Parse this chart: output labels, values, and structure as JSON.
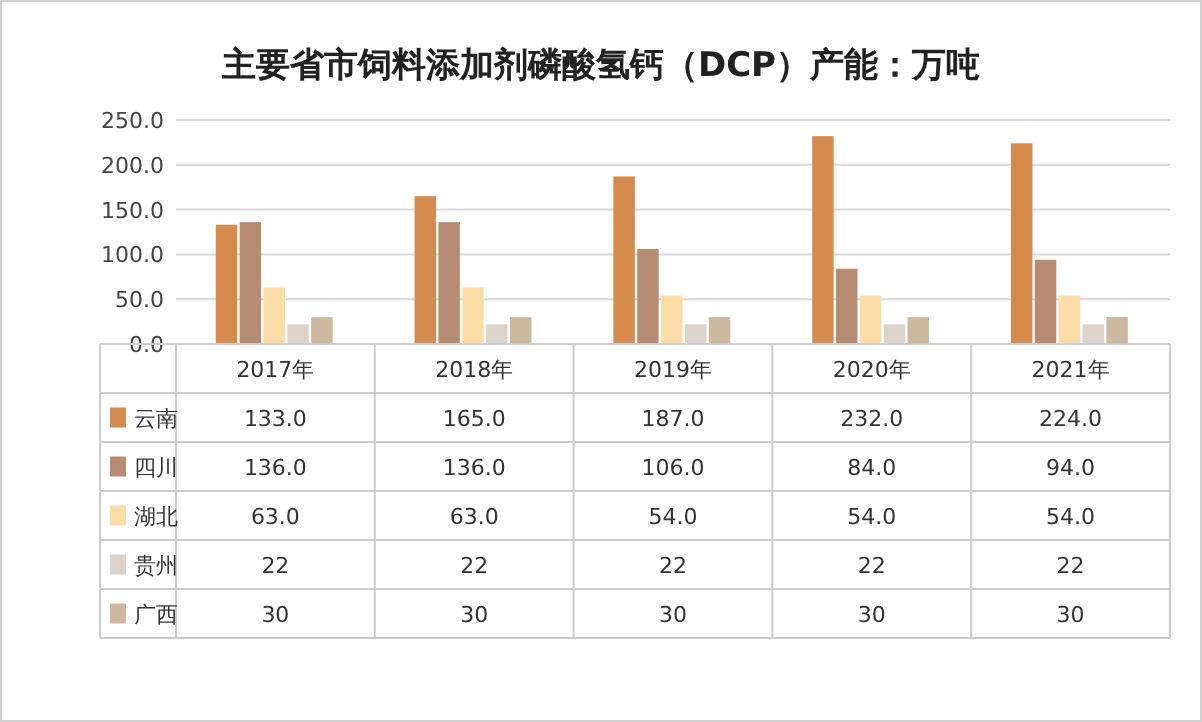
{
  "chart_data": {
    "type": "bar",
    "title": "主要省市饲料添加剂磷酸氢钙（DCP）产能：万吨",
    "categories": [
      "2017年",
      "2018年",
      "2019年",
      "2020年",
      "2021年"
    ],
    "series": [
      {
        "name": "云南",
        "color": "#d58a4e",
        "values": [
          133.0,
          165.0,
          187.0,
          232.0,
          224.0
        ],
        "value_labels": [
          "133.0",
          "165.0",
          "187.0",
          "232.0",
          "224.0"
        ]
      },
      {
        "name": "四川",
        "color": "#b88c72",
        "values": [
          136.0,
          136.0,
          106.0,
          84.0,
          94.0
        ],
        "value_labels": [
          "136.0",
          "136.0",
          "106.0",
          "84.0",
          "94.0"
        ]
      },
      {
        "name": "湖北",
        "color": "#fbdca6",
        "values": [
          63.0,
          63.0,
          54.0,
          54.0,
          54.0
        ],
        "value_labels": [
          "63.0",
          "63.0",
          "54.0",
          "54.0",
          "54.0"
        ]
      },
      {
        "name": "贵州",
        "color": "#dcd3ca",
        "values": [
          22,
          22,
          22,
          22,
          22
        ],
        "value_labels": [
          "22",
          "22",
          "22",
          "22",
          "22"
        ]
      },
      {
        "name": "广西",
        "color": "#cbb89e",
        "values": [
          30,
          30,
          30,
          30,
          30
        ],
        "value_labels": [
          "30",
          "30",
          "30",
          "30",
          "30"
        ]
      }
    ],
    "ylim": [
      0,
      250
    ],
    "yticks": [
      {
        "value": 0,
        "label": "0.0"
      },
      {
        "value": 50,
        "label": "50.0"
      },
      {
        "value": 100,
        "label": "100.0"
      },
      {
        "value": 150,
        "label": "150.0"
      },
      {
        "value": 200,
        "label": "200.0"
      },
      {
        "value": 250,
        "label": "250.0"
      }
    ],
    "grid": "y",
    "legend": "bottom"
  }
}
